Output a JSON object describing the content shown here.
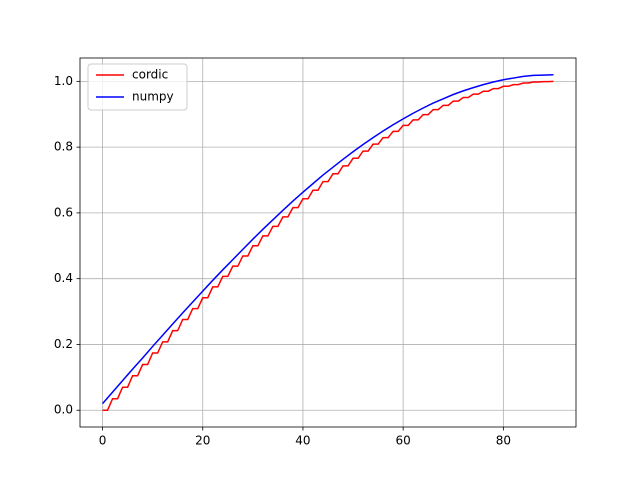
{
  "chart_data": {
    "type": "line",
    "series": [
      {
        "name": "cordic",
        "color": "#ff0000",
        "x": [
          0,
          1,
          2,
          3,
          4,
          5,
          6,
          7,
          8,
          9,
          10,
          11,
          12,
          13,
          14,
          15,
          16,
          17,
          18,
          19,
          20,
          21,
          22,
          23,
          24,
          25,
          26,
          27,
          28,
          29,
          30,
          31,
          32,
          33,
          34,
          35,
          36,
          37,
          38,
          39,
          40,
          41,
          42,
          43,
          44,
          45,
          46,
          47,
          48,
          49,
          50,
          51,
          52,
          53,
          54,
          55,
          56,
          57,
          58,
          59,
          60,
          61,
          62,
          63,
          64,
          65,
          66,
          67,
          68,
          69,
          70,
          71,
          72,
          73,
          74,
          75,
          76,
          77,
          78,
          79,
          80,
          81,
          82,
          83,
          84,
          85,
          86,
          87,
          88,
          89,
          90
        ],
        "values": [
          0,
          0,
          0.035,
          0.035,
          0.07,
          0.07,
          0.105,
          0.105,
          0.139,
          0.139,
          0.174,
          0.174,
          0.208,
          0.208,
          0.242,
          0.242,
          0.276,
          0.276,
          0.309,
          0.309,
          0.342,
          0.342,
          0.375,
          0.375,
          0.407,
          0.407,
          0.438,
          0.438,
          0.469,
          0.469,
          0.5,
          0.5,
          0.53,
          0.53,
          0.559,
          0.559,
          0.588,
          0.588,
          0.616,
          0.616,
          0.643,
          0.643,
          0.669,
          0.669,
          0.695,
          0.695,
          0.719,
          0.719,
          0.743,
          0.743,
          0.766,
          0.766,
          0.788,
          0.788,
          0.809,
          0.809,
          0.829,
          0.829,
          0.848,
          0.848,
          0.866,
          0.866,
          0.883,
          0.883,
          0.899,
          0.899,
          0.914,
          0.914,
          0.927,
          0.927,
          0.94,
          0.94,
          0.951,
          0.951,
          0.961,
          0.961,
          0.97,
          0.97,
          0.978,
          0.978,
          0.985,
          0.985,
          0.99,
          0.99,
          0.995,
          0.995,
          0.998,
          0.998,
          0.999,
          0.999,
          1.0
        ]
      },
      {
        "name": "numpy",
        "color": "#0000ff",
        "x": [
          0,
          2,
          4,
          6,
          8,
          10,
          12,
          14,
          16,
          18,
          20,
          22,
          24,
          26,
          28,
          30,
          32,
          34,
          36,
          38,
          40,
          42,
          44,
          46,
          48,
          50,
          52,
          54,
          56,
          58,
          60,
          62,
          64,
          66,
          68,
          70,
          72,
          74,
          76,
          78,
          80,
          82,
          84,
          86,
          88,
          90
        ],
        "values": [
          0.02,
          0.055,
          0.09,
          0.125,
          0.159,
          0.194,
          0.228,
          0.262,
          0.296,
          0.329,
          0.362,
          0.395,
          0.427,
          0.458,
          0.489,
          0.52,
          0.55,
          0.579,
          0.608,
          0.636,
          0.663,
          0.689,
          0.715,
          0.739,
          0.763,
          0.786,
          0.808,
          0.829,
          0.849,
          0.868,
          0.886,
          0.903,
          0.919,
          0.934,
          0.947,
          0.96,
          0.971,
          0.981,
          0.99,
          0.998,
          1.005,
          1.01,
          1.015,
          1.018,
          1.019,
          1.02
        ]
      }
    ],
    "xlim": [
      -4.5,
      94.5
    ],
    "xticks": [
      0,
      20,
      40,
      60,
      80
    ],
    "ylim": [
      -0.051,
      1.071
    ],
    "yticks": [
      {
        "value": 0,
        "label": "0.0"
      },
      0.2,
      0.4,
      0.6,
      0.8,
      {
        "value": 1,
        "label": "1.0"
      }
    ],
    "grid": true,
    "legend": "upper left"
  }
}
